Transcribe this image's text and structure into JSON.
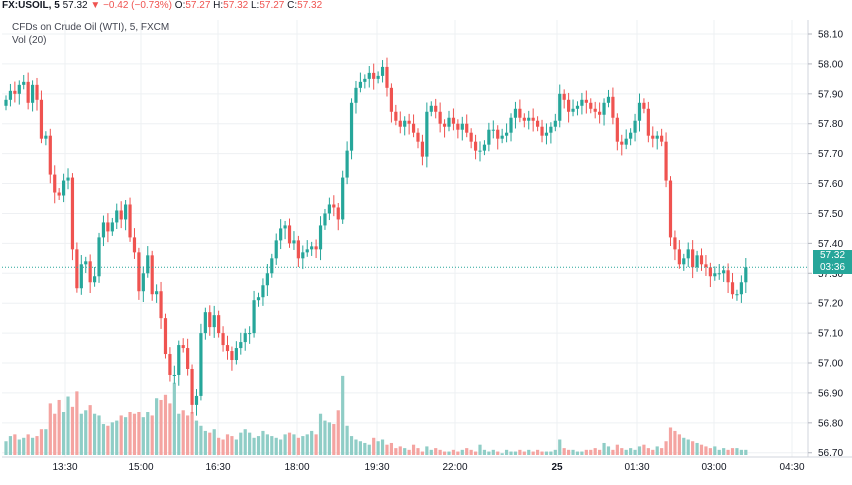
{
  "header": {
    "symbol": "FX:USOIL, 5",
    "last": "57.32",
    "change": "−0.42 (−0.73%)",
    "open_label": "O:",
    "open": "57.27",
    "high_label": "H:",
    "high": "57.32",
    "low_label": "L:",
    "low": "57.27",
    "close_label": "C:",
    "close": "57.32",
    "description": "CFDs on Crude Oil (WTI), 5, FXCM",
    "volume_label": "Vol (20)"
  },
  "price_tag": {
    "price": "57.32",
    "countdown": "03:36"
  },
  "colors": {
    "up": "#26a69a",
    "down": "#ef5350",
    "vol_up": "#8fcdc6",
    "vol_down": "#f4a4a1",
    "grid": "#eef0f3",
    "axis_text": "#131722"
  },
  "chart_data": {
    "type": "candlestick",
    "interval": "5m",
    "x_ticks": [
      "13:30",
      "15:00",
      "16:30",
      "18:00",
      "19:30",
      "22:00",
      "25",
      "01:30",
      "03:00",
      "04:30"
    ],
    "y_ticks": [
      "58.10",
      "58.00",
      "57.90",
      "57.80",
      "57.70",
      "57.60",
      "57.50",
      "57.40",
      "57.30",
      "57.20",
      "57.10",
      "57.00",
      "56.90",
      "56.80",
      "56.70"
    ],
    "ylim": [
      56.65,
      58.14
    ],
    "last_price": 57.32,
    "grid": true,
    "close": [
      57.88,
      57.91,
      57.9,
      57.93,
      57.94,
      57.87,
      57.93,
      57.88,
      57.75,
      57.76,
      57.63,
      57.57,
      57.56,
      57.61,
      57.62,
      57.38,
      57.25,
      57.33,
      57.34,
      57.27,
      57.29,
      57.42,
      57.47,
      57.44,
      57.47,
      57.51,
      57.48,
      57.53,
      57.42,
      57.37,
      57.24,
      57.3,
      57.36,
      57.23,
      57.24,
      57.15,
      57.03,
      56.96,
      56.96,
      57.06,
      57.05,
      56.98,
      56.86,
      56.89,
      57.1,
      57.17,
      57.12,
      57.16,
      57.1,
      57.06,
      57.04,
      57.01,
      57.05,
      57.07,
      57.1,
      57.1,
      57.21,
      57.22,
      57.26,
      57.3,
      57.35,
      57.41,
      57.45,
      57.46,
      57.4,
      57.41,
      57.35,
      57.37,
      57.38,
      57.39,
      57.38,
      57.46,
      57.5,
      57.53,
      57.52,
      57.48,
      57.62,
      57.71,
      57.87,
      57.92,
      57.94,
      57.95,
      57.97,
      57.95,
      57.96,
      57.99,
      57.92,
      57.84,
      57.81,
      57.79,
      57.81,
      57.8,
      57.77,
      57.74,
      57.69,
      57.84,
      57.86,
      57.84,
      57.8,
      57.79,
      57.82,
      57.8,
      57.78,
      57.8,
      57.77,
      57.74,
      57.71,
      57.71,
      57.73,
      57.78,
      57.78,
      57.75,
      57.76,
      57.77,
      57.82,
      57.85,
      57.82,
      57.81,
      57.82,
      57.81,
      57.79,
      57.76,
      57.77,
      57.79,
      57.81,
      57.9,
      57.88,
      57.84,
      57.85,
      57.86,
      57.88,
      57.87,
      57.85,
      57.84,
      57.83,
      57.87,
      57.89,
      57.82,
      57.74,
      57.73,
      57.75,
      57.77,
      57.81,
      57.87,
      57.85,
      57.76,
      57.75,
      57.76,
      57.74,
      57.61,
      57.42,
      57.38,
      57.33,
      57.35,
      57.38,
      57.32,
      57.36,
      57.33,
      57.32,
      57.29,
      57.3,
      57.3,
      57.31,
      57.27,
      57.23,
      57.23,
      57.27,
      57.32
    ],
    "volume": [
      8,
      11,
      12,
      9,
      10,
      12,
      10,
      11,
      15,
      15,
      30,
      24,
      32,
      25,
      34,
      28,
      37,
      24,
      26,
      29,
      24,
      23,
      18,
      17,
      19,
      20,
      23,
      22,
      25,
      24,
      25,
      22,
      25,
      23,
      33,
      32,
      35,
      30,
      42,
      24,
      26,
      23,
      25,
      20,
      17,
      14,
      13,
      15,
      10,
      9,
      12,
      11,
      9,
      13,
      15,
      13,
      10,
      11,
      14,
      12,
      11,
      10,
      9,
      12,
      13,
      12,
      10,
      11,
      12,
      14,
      12,
      24,
      20,
      19,
      18,
      26,
      46,
      17,
      11,
      9,
      8,
      7,
      6,
      10,
      8,
      9,
      6,
      7,
      4,
      5,
      4,
      3,
      6,
      4,
      2,
      5,
      3,
      4,
      3,
      2,
      2,
      3,
      2,
      3,
      4,
      3,
      2,
      6,
      3,
      2,
      3,
      2,
      1,
      3,
      2,
      2,
      3,
      2,
      3,
      2,
      3,
      2,
      2,
      2,
      3,
      9,
      4,
      3,
      3,
      2,
      2,
      3,
      3,
      4,
      3,
      7,
      5,
      3,
      6,
      4,
      3,
      4,
      3,
      5,
      6,
      4,
      3,
      5,
      4,
      8,
      16,
      14,
      12,
      10,
      9,
      8,
      7,
      6,
      5,
      4,
      5,
      3,
      4,
      3,
      4,
      4,
      3,
      3
    ]
  }
}
